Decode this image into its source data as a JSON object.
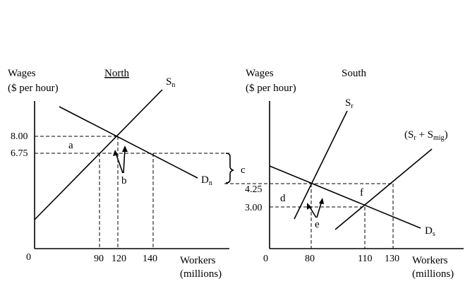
{
  "north": {
    "title": "North",
    "y_label_line1": "Wages",
    "y_label_line2": "($ per hour)",
    "x_label_line1": "Workers",
    "x_label_line2": "(millions)",
    "origin": "0",
    "y_ticks": [
      "8.00",
      "6.75"
    ],
    "x_ticks": [
      "90",
      "120",
      "140"
    ],
    "supply_label": "S",
    "supply_sub": "n",
    "demand_label": "D",
    "demand_sub": "n",
    "area_a": "a",
    "area_b": "b",
    "area_c": "c"
  },
  "south": {
    "title": "South",
    "y_label_line1": "Wages",
    "y_label_line2": "($ per hour)",
    "x_label_line1": "Workers",
    "x_label_line2": "(millions)",
    "origin": "0",
    "y_ticks": [
      "4.25",
      "3.00"
    ],
    "x_ticks": [
      "80",
      "110",
      "130"
    ],
    "supply_label": "S",
    "supply_sub": "r",
    "combined_supply_open": "(S",
    "combined_supply_sub1": "r",
    "combined_supply_mid": " + S",
    "combined_supply_sub2": "mig",
    "combined_supply_close": ")",
    "demand_label": "D",
    "demand_sub": "s",
    "area_d": "d",
    "area_e": "e",
    "area_f": "f"
  }
}
